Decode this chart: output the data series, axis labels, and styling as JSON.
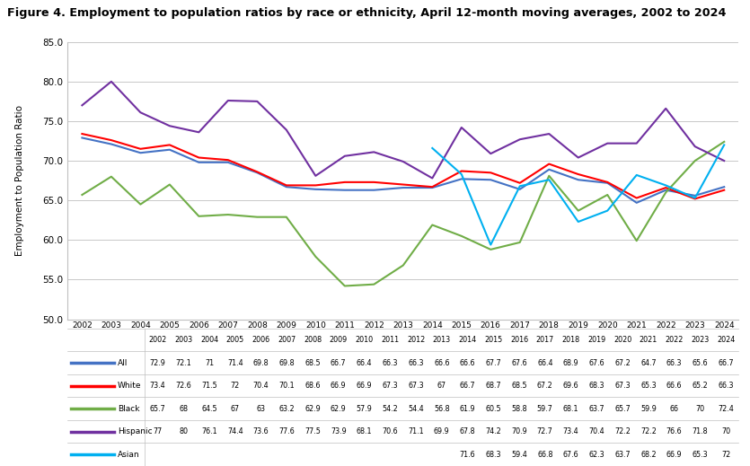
{
  "title": "Figure 4. Employment to population ratios by race or ethnicity, April 12-month moving averages, 2002 to 2024",
  "ylabel": "Employment to Population Ratio",
  "years_all": [
    2002,
    2003,
    2004,
    2005,
    2006,
    2007,
    2008,
    2009,
    2010,
    2011,
    2012,
    2013,
    2014,
    2015,
    2016,
    2017,
    2018,
    2019,
    2020,
    2021,
    2022,
    2023,
    2024
  ],
  "series": {
    "All": {
      "values": [
        72.9,
        72.1,
        71.0,
        71.4,
        69.8,
        69.8,
        68.5,
        66.7,
        66.4,
        66.3,
        66.3,
        66.6,
        66.6,
        67.7,
        67.6,
        66.4,
        68.9,
        67.6,
        67.2,
        64.7,
        66.3,
        65.6,
        66.7
      ],
      "color": "#4472C4",
      "start_year": 2002
    },
    "White": {
      "values": [
        73.4,
        72.6,
        71.5,
        72.0,
        70.4,
        70.1,
        68.6,
        66.9,
        66.9,
        67.3,
        67.3,
        67.0,
        66.7,
        68.7,
        68.5,
        67.2,
        69.6,
        68.3,
        67.3,
        65.3,
        66.6,
        65.2,
        66.3
      ],
      "color": "#FF0000",
      "start_year": 2002
    },
    "Black": {
      "values": [
        65.7,
        68.0,
        64.5,
        67.0,
        63.0,
        63.2,
        62.9,
        62.9,
        57.9,
        54.2,
        54.4,
        56.8,
        61.9,
        60.5,
        58.8,
        59.7,
        68.1,
        63.7,
        65.7,
        59.9,
        66.0,
        70.0,
        72.4
      ],
      "color": "#70AD47",
      "start_year": 2002
    },
    "Hispanic": {
      "values": [
        77.0,
        80.0,
        76.1,
        74.4,
        73.6,
        77.6,
        77.5,
        73.9,
        68.1,
        70.6,
        71.1,
        69.9,
        67.8,
        74.2,
        70.9,
        72.7,
        73.4,
        70.4,
        72.2,
        72.2,
        76.6,
        71.8,
        70.0
      ],
      "color": "#7030A0",
      "start_year": 2002
    },
    "Asian": {
      "values": [
        71.6,
        68.3,
        59.4,
        66.8,
        67.6,
        62.3,
        63.7,
        68.2,
        66.9,
        65.3,
        72.0
      ],
      "color": "#00B0F0",
      "start_year": 2014
    }
  },
  "ylim": [
    50.0,
    85.0
  ],
  "yticks": [
    50.0,
    55.0,
    60.0,
    65.0,
    70.0,
    75.0,
    80.0,
    85.0
  ],
  "grid_color": "#BFBFBF",
  "table_years": [
    2002,
    2003,
    2004,
    2005,
    2006,
    2007,
    2008,
    2009,
    2010,
    2011,
    2012,
    2013,
    2014,
    2015,
    2016,
    2017,
    2018,
    2019,
    2020,
    2021,
    2022,
    2023,
    2024
  ]
}
